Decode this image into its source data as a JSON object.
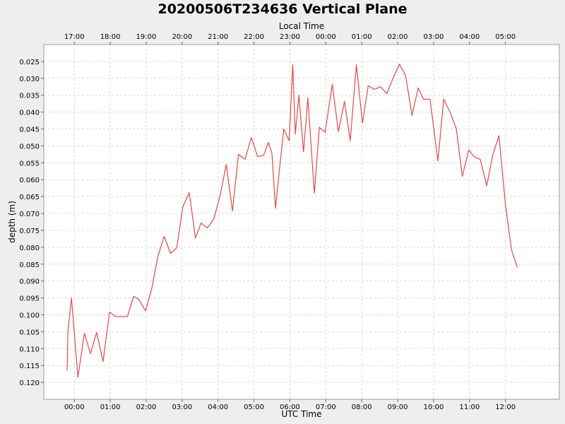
{
  "chart_data": {
    "type": "line",
    "title": "20200506T234636 Vertical Plane",
    "xlabel": "UTC Time",
    "x2label": "Local Time",
    "ylabel": "depth (m)",
    "y_inverted": true,
    "grid": true,
    "legend": "none",
    "line_color": "#e8474a",
    "ylim": [
      0.02,
      0.125
    ],
    "y_ticks": [
      "0.025",
      "0.030",
      "0.035",
      "0.040",
      "0.045",
      "0.050",
      "0.055",
      "0.060",
      "0.065",
      "0.070",
      "0.075",
      "0.080",
      "0.085",
      "0.090",
      "0.095",
      "0.100",
      "0.105",
      "0.110",
      "0.115",
      "0.120"
    ],
    "x_ticks": [
      "00:00",
      "01:00",
      "02:00",
      "03:00",
      "04:00",
      "05:00",
      "06:00",
      "07:00",
      "08:00",
      "09:00",
      "10:00",
      "11:00",
      "12:00"
    ],
    "x2_ticks": [
      "17:00",
      "18:00",
      "19:00",
      "20:00",
      "21:00",
      "22:00",
      "23:00",
      "00:00",
      "01:00",
      "02:00",
      "03:00",
      "04:00",
      "05:00"
    ],
    "xlim_hours": [
      -0.85,
      13.5
    ],
    "series": [
      {
        "x_hours": [
          -0.2,
          -0.18,
          -0.08,
          0.1,
          0.28,
          0.45,
          0.62,
          0.8,
          0.98,
          1.15,
          1.48,
          1.65,
          1.8,
          1.98,
          2.15,
          2.33,
          2.5,
          2.68,
          2.85,
          3.02,
          3.2,
          3.37,
          3.53,
          3.7,
          3.88,
          4.05,
          4.23,
          4.4,
          4.57,
          4.75,
          4.93,
          5.1,
          5.27,
          5.4,
          5.5,
          5.6,
          5.7,
          5.83,
          5.98,
          6.08,
          6.15,
          6.25,
          6.38,
          6.5,
          6.68,
          6.82,
          6.98,
          7.18,
          7.35,
          7.52,
          7.68,
          7.85,
          8.02,
          8.18,
          8.35,
          8.52,
          8.7,
          8.87,
          9.05,
          9.22,
          9.4,
          9.57,
          9.72,
          9.9,
          10.12,
          10.28,
          10.45,
          10.63,
          10.8,
          10.98,
          11.13,
          11.3,
          11.48,
          11.65,
          11.82,
          12.0,
          12.17,
          12.33
        ],
        "y_depth": [
          0.1165,
          0.105,
          0.095,
          0.1185,
          0.1055,
          0.1115,
          0.1052,
          0.1138,
          0.0992,
          0.1005,
          0.1005,
          0.0945,
          0.0955,
          0.0988,
          0.0925,
          0.0825,
          0.0768,
          0.0818,
          0.0802,
          0.068,
          0.0638,
          0.0773,
          0.0728,
          0.0743,
          0.0717,
          0.065,
          0.0555,
          0.0693,
          0.0525,
          0.054,
          0.0475,
          0.0532,
          0.0528,
          0.049,
          0.0522,
          0.0685,
          0.058,
          0.045,
          0.0485,
          0.026,
          0.0465,
          0.035,
          0.0518,
          0.0358,
          0.064,
          0.0445,
          0.046,
          0.0318,
          0.0458,
          0.0368,
          0.0485,
          0.026,
          0.0432,
          0.0322,
          0.0333,
          0.0325,
          0.0345,
          0.03,
          0.0258,
          0.0292,
          0.041,
          0.0328,
          0.0362,
          0.0362,
          0.0545,
          0.0362,
          0.0398,
          0.0448,
          0.059,
          0.0512,
          0.0532,
          0.054,
          0.0618,
          0.0525,
          0.047,
          0.0675,
          0.0808,
          0.086
        ]
      }
    ]
  }
}
